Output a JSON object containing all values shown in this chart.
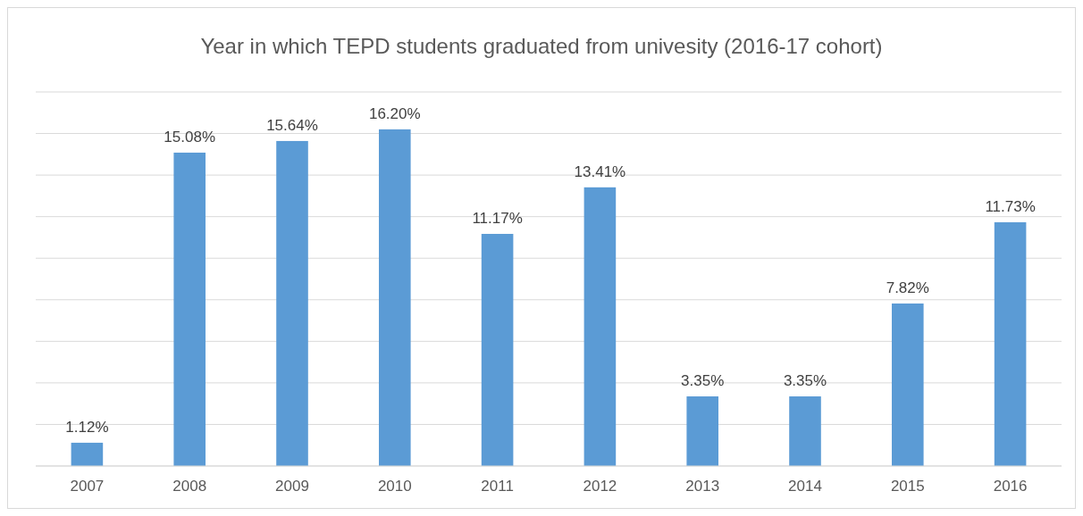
{
  "chart_data": {
    "type": "bar",
    "title": "Year in which TEPD students graduated from univesity (2016-17 cohort)",
    "categories": [
      "2007",
      "2008",
      "2009",
      "2010",
      "2011",
      "2012",
      "2013",
      "2014",
      "2015",
      "2016"
    ],
    "values": [
      1.12,
      15.08,
      15.64,
      16.2,
      11.17,
      13.41,
      3.35,
      3.35,
      7.82,
      11.73
    ],
    "value_labels": [
      "1.12%",
      "15.08%",
      "15.64%",
      "16.20%",
      "11.17%",
      "13.41%",
      "3.35%",
      "3.35%",
      "7.82%",
      "11.73%"
    ],
    "color": "#5b9bd5",
    "ylim": [
      0,
      18
    ],
    "yticks": [
      {
        "value": 0,
        "label": null
      },
      {
        "value": 2,
        "label": null
      },
      {
        "value": 4,
        "label": null
      },
      {
        "value": 6,
        "label": null
      },
      {
        "value": 8,
        "label": null
      },
      {
        "value": 10,
        "label": null
      },
      {
        "value": 12,
        "label": null
      },
      {
        "value": 14,
        "label": null
      },
      {
        "value": 16,
        "label": null
      },
      {
        "value": 18,
        "label": null
      }
    ],
    "grid": "y",
    "tick_labels": "x"
  }
}
